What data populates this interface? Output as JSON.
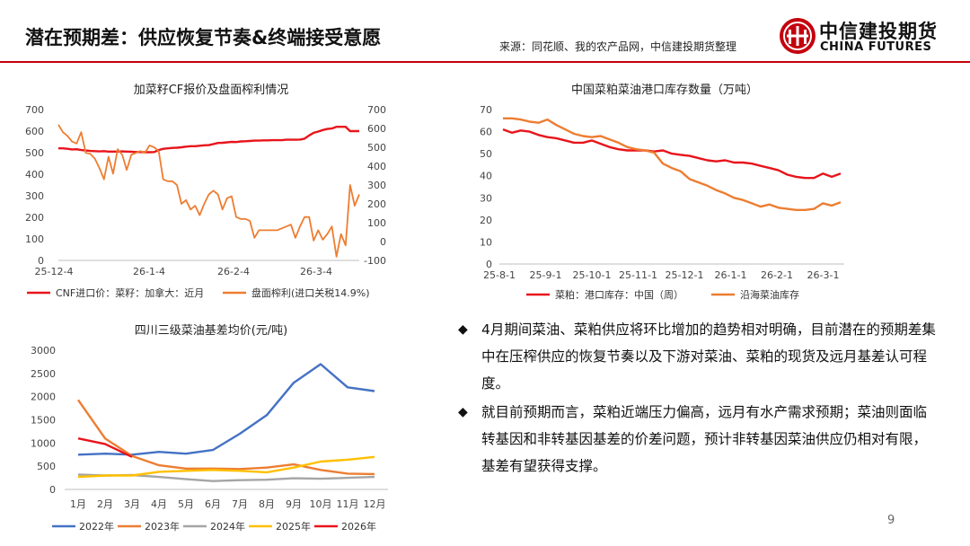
{
  "header": {
    "title": "潜在预期差：供应恢复节奏&终端接受意愿",
    "source": "来源：同花顺、我的农产品网，中信建投期货整理",
    "logo_cn": "中信建投期货",
    "logo_en": "CHINA FUTURES"
  },
  "page_number": "9",
  "bullets": [
    "4月期间菜油、菜粕供应将环比增加的趋势相对明确，目前潜在的预期差集中在压榨供应的恢复节奏以及下游对菜油、菜粕的现货及远月基差认可程度。",
    "就目前预期而言，菜粕近端压力偏高，远月有水产需求预期；菜油则面临转基因和非转基因基差的价差问题，预计非转基因菜油供应仍相对有限，基差有望获得支撑。"
  ],
  "colors": {
    "red": "#e8141b",
    "orange": "#ed7d31",
    "blue": "#4472c4",
    "gray": "#a5a5a5",
    "yellow": "#ffc000",
    "accent": "#c4000d"
  },
  "chart_data": [
    {
      "id": "canola",
      "type": "line",
      "title": "加菜籽CF报价及盘面榨利情况",
      "x_ticks": [
        "25-12-4",
        "26-1-4",
        "26-2-4",
        "26-3-4"
      ],
      "ylim_left": [
        0,
        700
      ],
      "ylim_right": [
        -100,
        700
      ],
      "yticks_left": [
        "0",
        "100",
        "200",
        "300",
        "400",
        "500",
        "600",
        "700"
      ],
      "yticks_right": [
        "-100",
        "0",
        "100",
        "200",
        "300",
        "400",
        "500",
        "600",
        "700"
      ],
      "series": [
        {
          "name": "CNF进口价：菜籽：加拿大：近月",
          "axis": "left",
          "color": "#e8141b",
          "values": [
            520,
            520,
            518,
            515,
            516,
            512,
            510,
            508,
            507,
            506,
            507,
            505,
            505,
            505,
            506,
            505,
            504,
            503,
            503,
            502,
            502,
            503,
            512,
            518,
            520,
            522,
            523,
            525,
            528,
            530,
            530,
            532,
            534,
            535,
            540,
            545,
            546,
            548,
            550,
            549,
            552,
            553,
            554,
            556,
            556,
            557,
            557,
            558,
            558,
            558,
            560,
            560,
            560,
            561,
            565,
            580,
            592,
            598,
            605,
            610,
            612,
            620,
            620,
            620,
            600,
            600,
            600
          ]
        },
        {
          "name": "盘面榨利(进口关税14.9%)",
          "axis": "right",
          "color": "#ed7d31",
          "values": [
            620,
            580,
            560,
            530,
            520,
            580,
            470,
            465,
            440,
            390,
            330,
            450,
            360,
            490,
            460,
            380,
            460,
            470,
            480,
            470,
            510,
            500,
            480,
            330,
            320,
            320,
            300,
            200,
            220,
            170,
            190,
            140,
            200,
            250,
            270,
            250,
            170,
            230,
            240,
            130,
            120,
            120,
            110,
            20,
            60,
            60,
            60,
            60,
            60,
            70,
            80,
            90,
            20,
            80,
            130,
            130,
            5,
            60,
            10,
            40,
            80,
            -80,
            40,
            -20,
            300,
            190,
            250
          ]
        }
      ]
    },
    {
      "id": "rapeseed_meal",
      "type": "line",
      "title": "中国菜粕菜油港口库存数量（万吨）",
      "x_ticks": [
        "25-8-1",
        "25-9-1",
        "25-10-1",
        "25-11-1",
        "25-12-1",
        "26-1-1",
        "26-2-1",
        "26-3-1"
      ],
      "ylim": [
        0,
        70
      ],
      "yticks": [
        "0",
        "10",
        "20",
        "30",
        "40",
        "50",
        "60",
        "70"
      ],
      "series": [
        {
          "name": "菜粕：港口库存：中国（周）",
          "color": "#e8141b",
          "values": [
            61,
            59.5,
            60.5,
            60,
            58.5,
            57.5,
            57,
            56,
            55,
            55,
            56,
            54.5,
            53,
            52,
            51.5,
            51.5,
            51.5,
            51,
            51.5,
            50,
            49.5,
            49,
            48,
            47,
            46.5,
            47,
            46,
            46,
            45.5,
            44.5,
            43.5,
            42.5,
            40.5,
            39.5,
            39,
            39,
            41,
            39.5,
            41
          ]
        },
        {
          "name": "沿海菜油库存",
          "color": "#ed7d31",
          "values": [
            66,
            66,
            65.5,
            64.5,
            64,
            65.5,
            63,
            61,
            59,
            58,
            57.5,
            58,
            56.5,
            55,
            53,
            52,
            51.5,
            50.5,
            45.5,
            43.5,
            42,
            38.5,
            37,
            35.5,
            33.5,
            32,
            30,
            29,
            27.5,
            26,
            27,
            25.5,
            25,
            24.5,
            24.5,
            25,
            27.5,
            26.5,
            28
          ]
        }
      ]
    },
    {
      "id": "sichuan_basis",
      "type": "line",
      "title": "四川三级菜油基差均价(元/吨)",
      "categories": [
        "1月",
        "2月",
        "3月",
        "4月",
        "5月",
        "6月",
        "7月",
        "8月",
        "9月",
        "10月",
        "11月",
        "12月"
      ],
      "ylim": [
        0,
        3000
      ],
      "yticks": [
        "0",
        "500",
        "1000",
        "1500",
        "2000",
        "2500",
        "3000"
      ],
      "series": [
        {
          "name": "2022年",
          "color": "#4472c4",
          "values": [
            750,
            770,
            750,
            810,
            770,
            850,
            1200,
            1600,
            2300,
            2700,
            2200,
            2120
          ]
        },
        {
          "name": "2023年",
          "color": "#ed7d31",
          "values": [
            1930,
            1100,
            720,
            520,
            450,
            450,
            440,
            470,
            540,
            420,
            340,
            330
          ]
        },
        {
          "name": "2024年",
          "color": "#a5a5a5",
          "values": [
            320,
            300,
            310,
            270,
            220,
            180,
            200,
            210,
            240,
            230,
            250,
            270
          ]
        },
        {
          "name": "2025年",
          "color": "#ffc000",
          "values": [
            270,
            300,
            300,
            380,
            400,
            420,
            400,
            370,
            470,
            600,
            640,
            700
          ]
        },
        {
          "name": "2026年",
          "color": "#e8141b",
          "values": [
            1100,
            980,
            700,
            null,
            null,
            null,
            null,
            null,
            null,
            null,
            null,
            null
          ]
        }
      ]
    }
  ]
}
